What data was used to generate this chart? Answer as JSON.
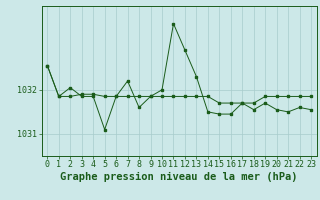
{
  "title": "Graphe pression niveau de la mer (hPa)",
  "background_color": "#cce8e8",
  "line_color": "#1a5c1a",
  "grid_color": "#a8cccc",
  "x_labels": [
    "0",
    "1",
    "2",
    "3",
    "4",
    "5",
    "6",
    "7",
    "8",
    "9",
    "10",
    "11",
    "12",
    "13",
    "14",
    "15",
    "16",
    "17",
    "18",
    "19",
    "20",
    "21",
    "22",
    "23"
  ],
  "y_ticks": [
    1031,
    1032
  ],
  "ylim": [
    1030.5,
    1033.9
  ],
  "series1": [
    1032.55,
    1031.85,
    1031.85,
    1031.9,
    1031.9,
    1031.85,
    1031.85,
    1031.85,
    1031.85,
    1031.85,
    1031.85,
    1031.85,
    1031.85,
    1031.85,
    1031.85,
    1031.7,
    1031.7,
    1031.7,
    1031.7,
    1031.85,
    1031.85,
    1031.85,
    1031.85,
    1031.85
  ],
  "series2": [
    1032.55,
    1031.85,
    1032.05,
    1031.85,
    1031.85,
    1031.1,
    1031.85,
    1032.2,
    1031.6,
    1031.85,
    1032.0,
    1033.5,
    1032.9,
    1032.3,
    1031.5,
    1031.45,
    1031.45,
    1031.7,
    1031.55,
    1031.7,
    1031.55,
    1031.5,
    1031.6,
    1031.55
  ],
  "title_fontsize": 7.5,
  "tick_fontsize": 6
}
